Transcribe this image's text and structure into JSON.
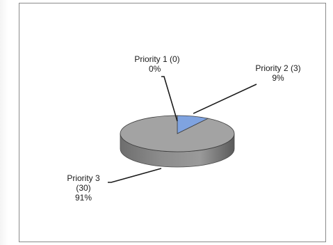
{
  "chart_data": {
    "type": "pie",
    "categories": [
      "Priority 1",
      "Priority 2",
      "Priority 3"
    ],
    "values": [
      0,
      3,
      30
    ],
    "percent_labels": [
      "0%",
      "9%",
      "91%"
    ],
    "data_labels": [
      {
        "line1": "Priority 1 (0)",
        "line2": "0%"
      },
      {
        "line1": "Priority 2 (3)",
        "line2": "9%"
      },
      {
        "line1": "Priority 3",
        "line2": "(30)",
        "line3": "91%"
      }
    ],
    "colors": [
      "#6b8fd4",
      "#8fb0e8",
      "#a6a6a6"
    ],
    "three_d": true,
    "legend": "none",
    "title": ""
  }
}
